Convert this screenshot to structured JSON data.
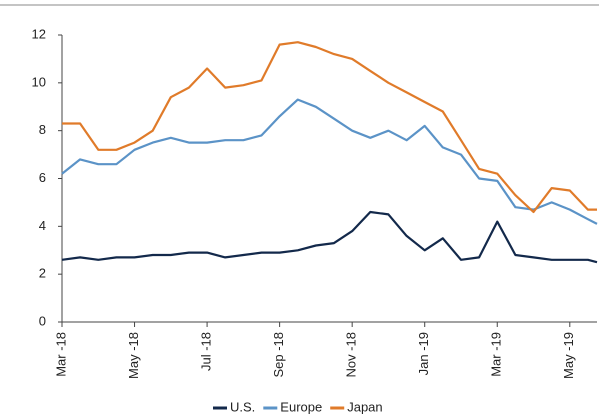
{
  "chart_data": {
    "type": "line",
    "x": [
      0,
      0.5,
      1,
      1.5,
      2,
      2.5,
      3,
      3.5,
      4,
      4.5,
      5,
      5.5,
      6,
      6.5,
      7,
      7.5,
      8,
      8.5,
      9,
      9.5,
      10,
      10.5,
      11,
      11.5,
      12,
      12.5,
      13,
      13.5,
      14,
      14.5,
      14.75
    ],
    "series": [
      {
        "name": "U.S.",
        "color": "#13294b",
        "values": [
          2.6,
          2.7,
          2.6,
          2.7,
          2.7,
          2.8,
          2.8,
          2.9,
          2.9,
          2.7,
          2.8,
          2.9,
          2.9,
          3.0,
          3.2,
          3.3,
          3.8,
          4.6,
          4.5,
          3.6,
          3.0,
          3.5,
          2.6,
          2.7,
          4.2,
          2.8,
          2.7,
          2.6,
          2.6,
          2.6,
          2.5
        ]
      },
      {
        "name": "Europe",
        "color": "#5b93c7",
        "values": [
          6.2,
          6.8,
          6.6,
          6.6,
          7.2,
          7.5,
          7.7,
          7.5,
          7.5,
          7.6,
          7.6,
          7.8,
          8.6,
          9.3,
          9.0,
          8.5,
          8.0,
          7.7,
          8.0,
          7.6,
          8.2,
          7.3,
          7.0,
          6.0,
          5.9,
          4.8,
          4.7,
          5.0,
          4.7,
          4.3,
          4.1
        ]
      },
      {
        "name": "Japan",
        "color": "#e07b2a",
        "values": [
          8.3,
          8.3,
          7.2,
          7.2,
          7.5,
          8.0,
          9.4,
          9.8,
          10.6,
          9.8,
          9.9,
          10.1,
          11.6,
          11.7,
          11.5,
          11.2,
          11.0,
          10.5,
          10.0,
          9.6,
          9.2,
          8.8,
          7.6,
          6.4,
          6.2,
          5.3,
          4.6,
          5.6,
          5.5,
          4.7,
          4.7
        ]
      }
    ],
    "xlim": [
      0,
      14.75
    ],
    "xticks": [
      {
        "value": 0,
        "label": "Mar -18"
      },
      {
        "value": 2,
        "label": "May -18"
      },
      {
        "value": 4,
        "label": "Jul -18"
      },
      {
        "value": 6,
        "label": "Sep -18"
      },
      {
        "value": 8,
        "label": "Nov -18"
      },
      {
        "value": 10,
        "label": "Jan -19"
      },
      {
        "value": 12,
        "label": "Mar -19"
      },
      {
        "value": 14,
        "label": "May -19"
      }
    ],
    "ylim": [
      0,
      12
    ],
    "yticks": [
      0,
      2,
      4,
      6,
      8,
      10,
      12
    ],
    "legend": "bottom"
  }
}
